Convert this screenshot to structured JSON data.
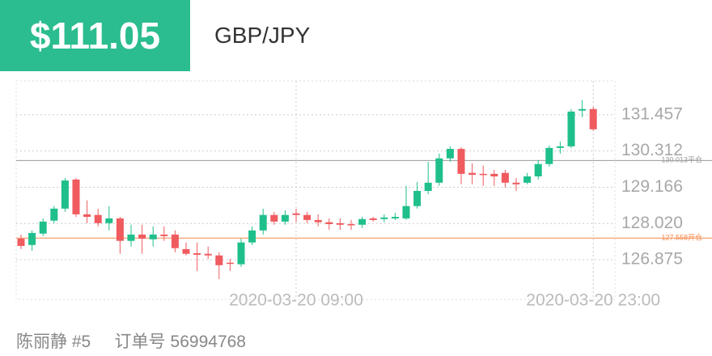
{
  "header": {
    "price": "$111.05",
    "pair": "GBP/JPY"
  },
  "footer": {
    "name": "陈丽静 #5",
    "order_label": "订单号",
    "order_id": "56994768"
  },
  "chart_data": {
    "type": "candlestick",
    "categories": [
      null,
      null,
      null,
      null,
      null,
      null,
      null,
      null,
      null,
      null,
      null,
      null,
      null,
      null,
      null,
      null,
      null,
      null,
      null,
      null,
      null,
      null,
      null,
      null,
      null,
      "2020-03-20 09:00",
      null,
      null,
      null,
      null,
      null,
      null,
      null,
      null,
      null,
      null,
      null,
      null,
      null,
      null,
      null,
      null,
      null,
      null,
      null,
      null,
      null,
      null,
      null,
      null,
      null,
      null,
      "2020-03-20 23:00"
    ],
    "open": [
      127.54,
      127.34,
      127.7,
      128.11,
      128.49,
      129.41,
      128.31,
      128.29,
      128.03,
      128.18,
      127.47,
      127.67,
      127.52,
      127.67,
      127.67,
      127.21,
      127.08,
      127.06,
      127.01,
      126.78,
      126.73,
      127.42,
      127.8,
      128.29,
      128.08,
      128.34,
      128.29,
      128.13,
      128.06,
      128.03,
      128.0,
      127.98,
      128.18,
      128.16,
      128.18,
      128.18,
      128.57,
      129.05,
      129.31,
      130.08,
      130.38,
      129.62,
      129.59,
      129.59,
      129.62,
      129.31,
      129.31,
      129.51,
      129.9,
      130.41,
      130.46,
      131.59,
      131.64
    ],
    "high": [
      127.67,
      127.8,
      128.18,
      128.57,
      129.46,
      129.46,
      128.75,
      128.49,
      128.57,
      128.23,
      127.98,
      127.98,
      127.93,
      127.93,
      127.8,
      127.42,
      127.42,
      127.29,
      127.11,
      126.9,
      127.54,
      127.93,
      128.49,
      128.39,
      128.44,
      128.49,
      128.39,
      128.31,
      128.18,
      128.18,
      128.13,
      128.23,
      128.23,
      128.31,
      128.36,
      129.21,
      129.33,
      129.97,
      130.23,
      130.46,
      130.43,
      129.92,
      129.85,
      129.72,
      129.72,
      129.46,
      129.62,
      130.03,
      130.49,
      130.61,
      131.64,
      131.92,
      131.71
    ],
    "low": [
      127.21,
      127.16,
      127.62,
      128.03,
      128.39,
      128.23,
      128.03,
      127.93,
      127.8,
      127.06,
      127.29,
      127.06,
      127.29,
      127.47,
      127.11,
      127.01,
      126.52,
      126.9,
      126.26,
      126.52,
      126.65,
      127.34,
      127.67,
      127.98,
      127.98,
      128.06,
      128.03,
      127.93,
      127.82,
      127.82,
      127.82,
      127.88,
      128.08,
      128.06,
      128.13,
      128.13,
      128.49,
      128.95,
      129.21,
      129.97,
      129.26,
      129.26,
      129.21,
      129.21,
      129.16,
      129.05,
      129.26,
      129.41,
      129.82,
      130.23,
      130.41,
      131.38,
      130.95
    ],
    "close": [
      127.31,
      127.72,
      128.08,
      128.49,
      129.38,
      128.31,
      128.23,
      128.03,
      128.18,
      127.47,
      127.67,
      127.54,
      127.67,
      127.62,
      127.24,
      127.06,
      127.03,
      127.01,
      126.7,
      126.75,
      127.42,
      127.8,
      128.29,
      128.08,
      128.29,
      128.29,
      128.13,
      128.06,
      128.0,
      127.98,
      127.98,
      128.16,
      128.13,
      128.21,
      128.23,
      128.57,
      129.05,
      129.31,
      130.08,
      130.38,
      129.59,
      129.56,
      129.56,
      129.51,
      129.31,
      129.26,
      129.51,
      129.9,
      130.41,
      130.46,
      131.56,
      131.64,
      131.0
    ],
    "up_color": "#1fbf8c",
    "down_color": "#ef5b5f",
    "ylim": [
      125.62,
      132.53
    ],
    "yticks": [
      126.875,
      {
        "value": 128.02,
        "label": "128.020"
      },
      129.166,
      130.312,
      131.457
    ],
    "grid": true,
    "lines": [
      {
        "value": 130.013,
        "label": "130.013平仓",
        "color": "#9a9a9a"
      },
      {
        "value": 127.558,
        "label": "127.558开仓",
        "color": "#f5884a"
      }
    ]
  }
}
